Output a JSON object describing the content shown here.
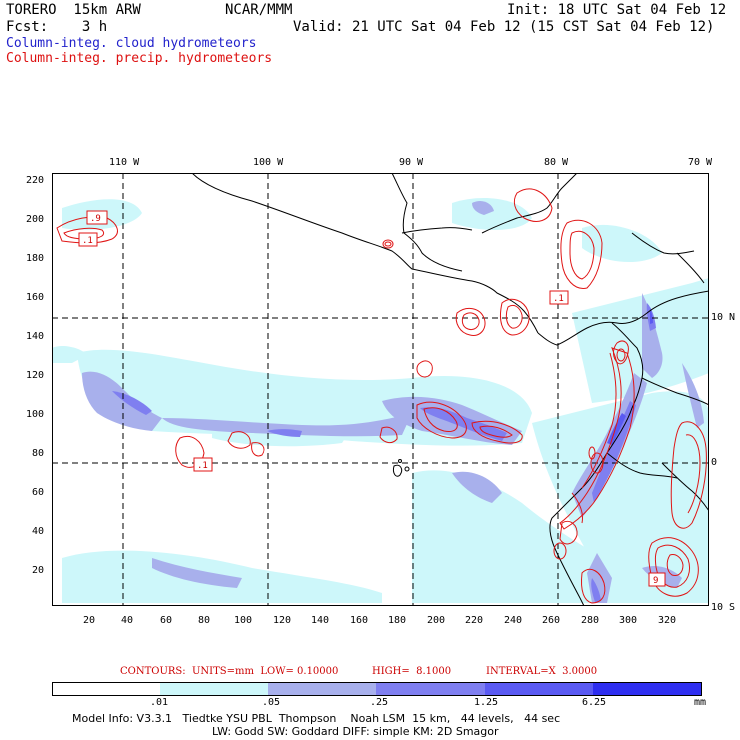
{
  "header": {
    "model": "TORERO  15km ARW",
    "org": "NCAR/MMM",
    "init": "Init: 18 UTC Sat 04 Feb 12",
    "fcst": "Fcst:    3 h",
    "valid": "Valid: 21 UTC Sat 04 Feb 12 (15 CST Sat 04 Feb 12)",
    "field_cloud": "Column-integ. cloud hydrometeors",
    "field_precip": "Column-integ. precip. hydrometeors"
  },
  "axes": {
    "top_lon_labels": [
      "110 W",
      "100 W",
      "90 W",
      "80 W",
      "70 W"
    ],
    "right_lat_labels": [
      "10 N",
      "0",
      "10 S"
    ],
    "left_labels": [
      "220",
      "200",
      "180",
      "160",
      "140",
      "120",
      "100",
      "80",
      "60",
      "40",
      "20"
    ],
    "bottom_labels": [
      "20",
      "40",
      "60",
      "80",
      "100",
      "120",
      "140",
      "160",
      "180",
      "200",
      "220",
      "240",
      "260",
      "280",
      "300",
      "320"
    ]
  },
  "contour_boxes": [
    ".9",
    ".1",
    ".1",
    ".1",
    "9"
  ],
  "contours_info": {
    "label": "CONTOURS:  UNITS=mm  LOW= 0.10000",
    "high": "HIGH=  8.1000",
    "interval": "INTERVAL=X  3.0000"
  },
  "colorbar": {
    "thresholds": [
      ".01",
      ".05",
      ".25",
      "1.25",
      "6.25"
    ],
    "units": "mm",
    "colors": [
      "#ffffff",
      "#cdf7fa",
      "#a8b0ec",
      "#7f7ff0",
      "#5a5af2",
      "#2e2ef0"
    ]
  },
  "footer": {
    "line1": "Model Info: V3.3.1   Tiedtke YSU PBL  Thompson    Noah LSM  15 km,   44 levels,   44 sec",
    "line2": "LW: Godd SW: Goddard DIFF: simple KM: 2D Smagor"
  }
}
